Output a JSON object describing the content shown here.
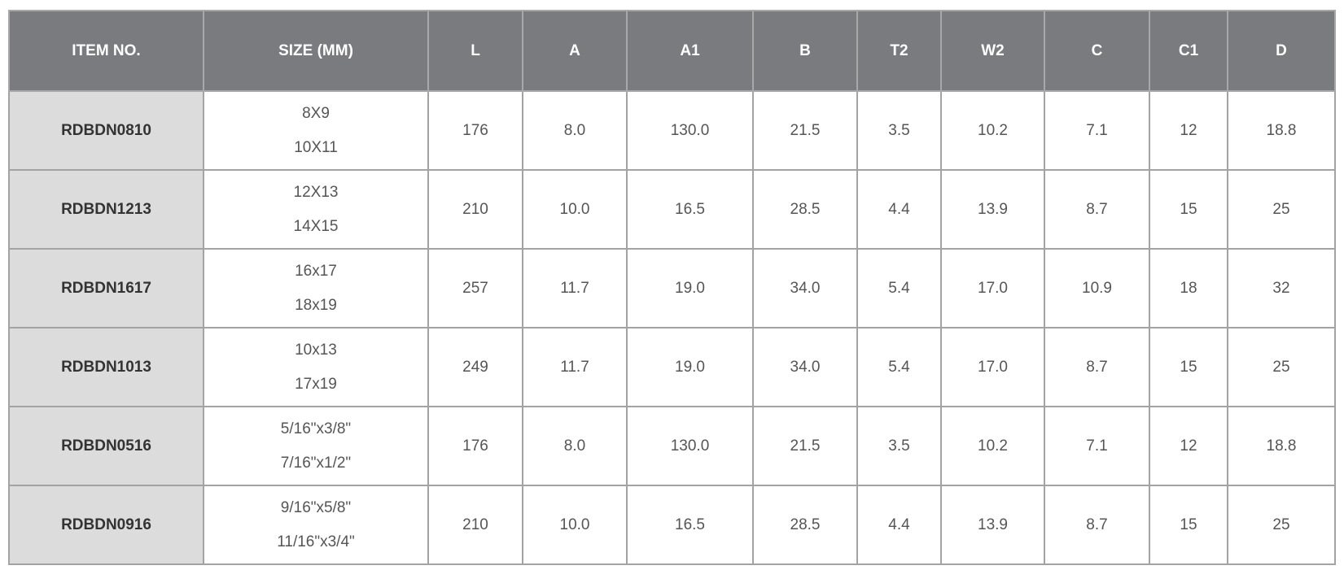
{
  "table": {
    "header": [
      "ITEM NO.",
      "SIZE (MM)",
      "L",
      "A",
      "A1",
      "B",
      "T2",
      "W2",
      "C",
      "C1",
      "D"
    ],
    "rows": [
      [
        "RDBDN0810",
        [
          "8X9",
          "10X11"
        ],
        "176",
        "8.0",
        "130.0",
        "21.5",
        "3.5",
        "10.2",
        "7.1",
        "12",
        "18.8"
      ],
      [
        "RDBDN1213",
        [
          "12X13",
          "14X15"
        ],
        "210",
        "10.0",
        "16.5",
        "28.5",
        "4.4",
        "13.9",
        "8.7",
        "15",
        "25"
      ],
      [
        "RDBDN1617",
        [
          "16x17",
          "18x19"
        ],
        "257",
        "11.7",
        "19.0",
        "34.0",
        "5.4",
        "17.0",
        "10.9",
        "18",
        "32"
      ],
      [
        "RDBDN1013",
        [
          "10x13",
          "17x19"
        ],
        "249",
        "11.7",
        "19.0",
        "34.0",
        "5.4",
        "17.0",
        "8.7",
        "15",
        "25"
      ],
      [
        "RDBDN0516",
        [
          "5/16\"x3/8\"",
          "7/16\"x1/2\""
        ],
        "176",
        "8.0",
        "130.0",
        "21.5",
        "3.5",
        "10.2",
        "7.1",
        "12",
        "18.8"
      ],
      [
        "RDBDN0916",
        [
          "9/16\"x5/8\"",
          "11/16\"x3/4\""
        ],
        "210",
        "10.0",
        "16.5",
        "28.5",
        "4.4",
        "13.9",
        "8.7",
        "15",
        "25"
      ]
    ]
  }
}
